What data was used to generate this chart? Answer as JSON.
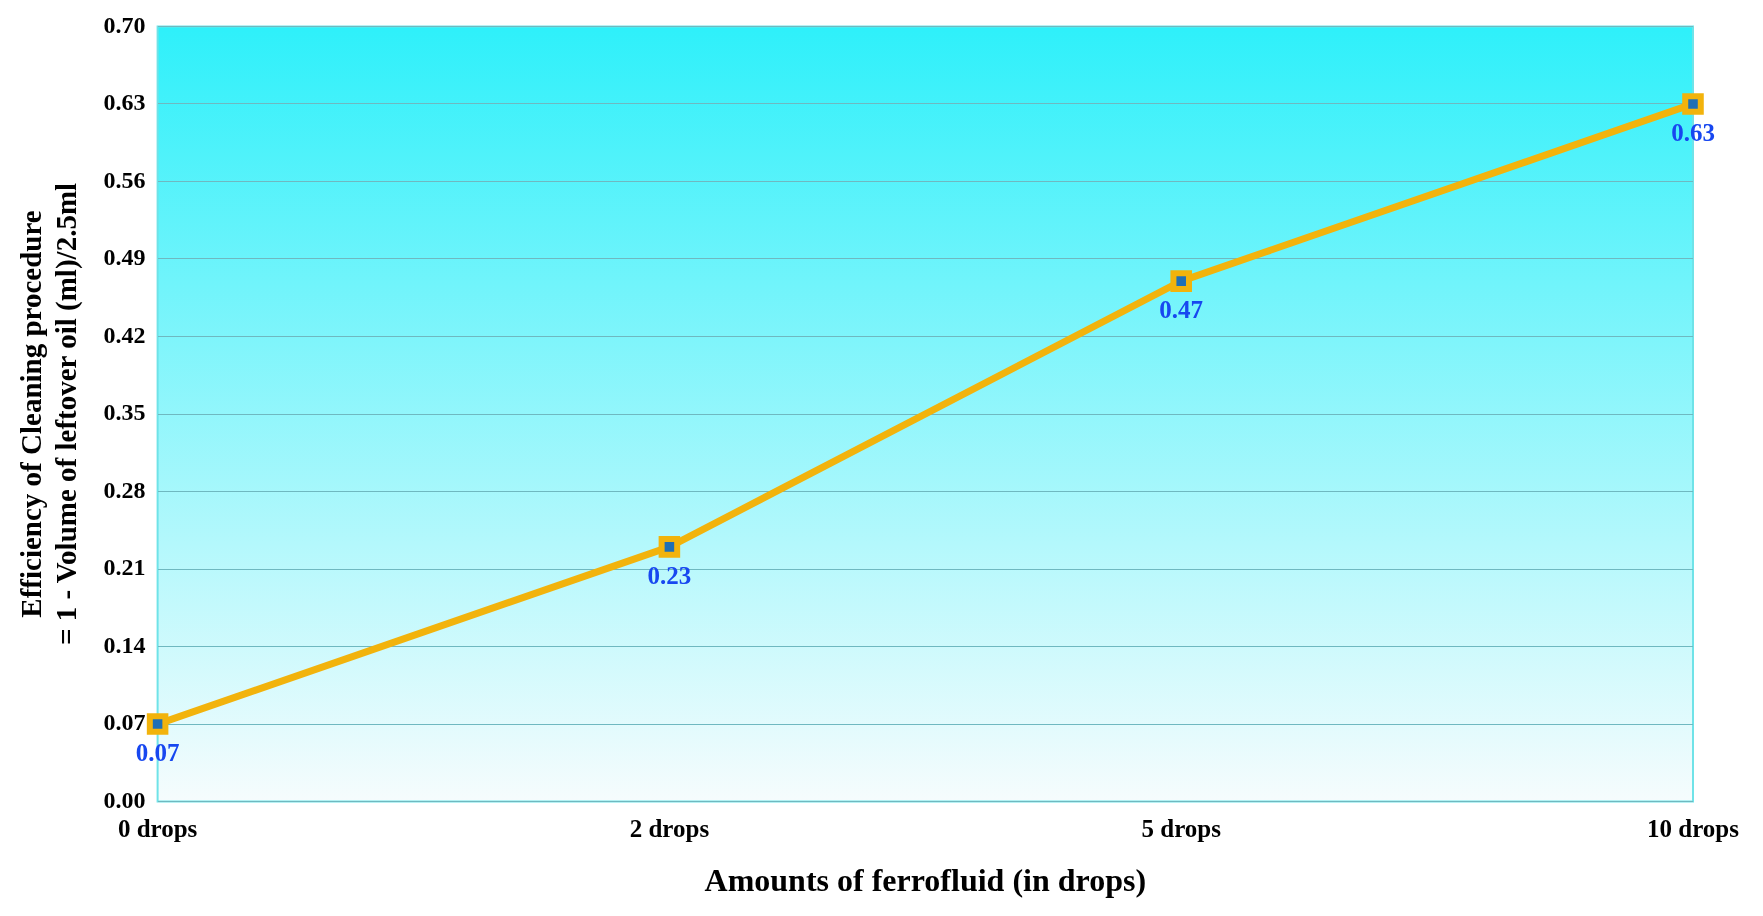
{
  "chart_data": {
    "type": "line",
    "xlabel": "Amounts of ferrofluid (in drops)",
    "ylabel": "Efficiency of Cleaning procedure\n= 1 - Volume of leftover oil (ml)/2.5ml",
    "categories": [
      "0 drops",
      "2 drops",
      "5 drops",
      "10 drops"
    ],
    "series": [
      {
        "color": "#f2b30c",
        "values": [
          0.07,
          0.23,
          0.47,
          0.63
        ]
      }
    ],
    "ylim": [
      0,
      0.7
    ],
    "yticks": [
      {
        "value": 0,
        "label": "0.00"
      },
      {
        "value": 0.07,
        "label": "0.07"
      },
      {
        "value": 0.14,
        "label": "0.14"
      },
      {
        "value": 0.21,
        "label": "0.21"
      },
      {
        "value": 0.28,
        "label": "0.28"
      },
      {
        "value": 0.35,
        "label": "0.35"
      },
      {
        "value": 0.42,
        "label": "0.42"
      },
      {
        "value": 0.49,
        "label": "0.49"
      },
      {
        "value": 0.56,
        "label": "0.56"
      },
      {
        "value": 0.63,
        "label": "0.63"
      },
      {
        "value": 0.7,
        "label": "0.70"
      }
    ],
    "grid": "y",
    "marker": "square",
    "line_style": "solid",
    "data_labels": true,
    "legend": false
  }
}
